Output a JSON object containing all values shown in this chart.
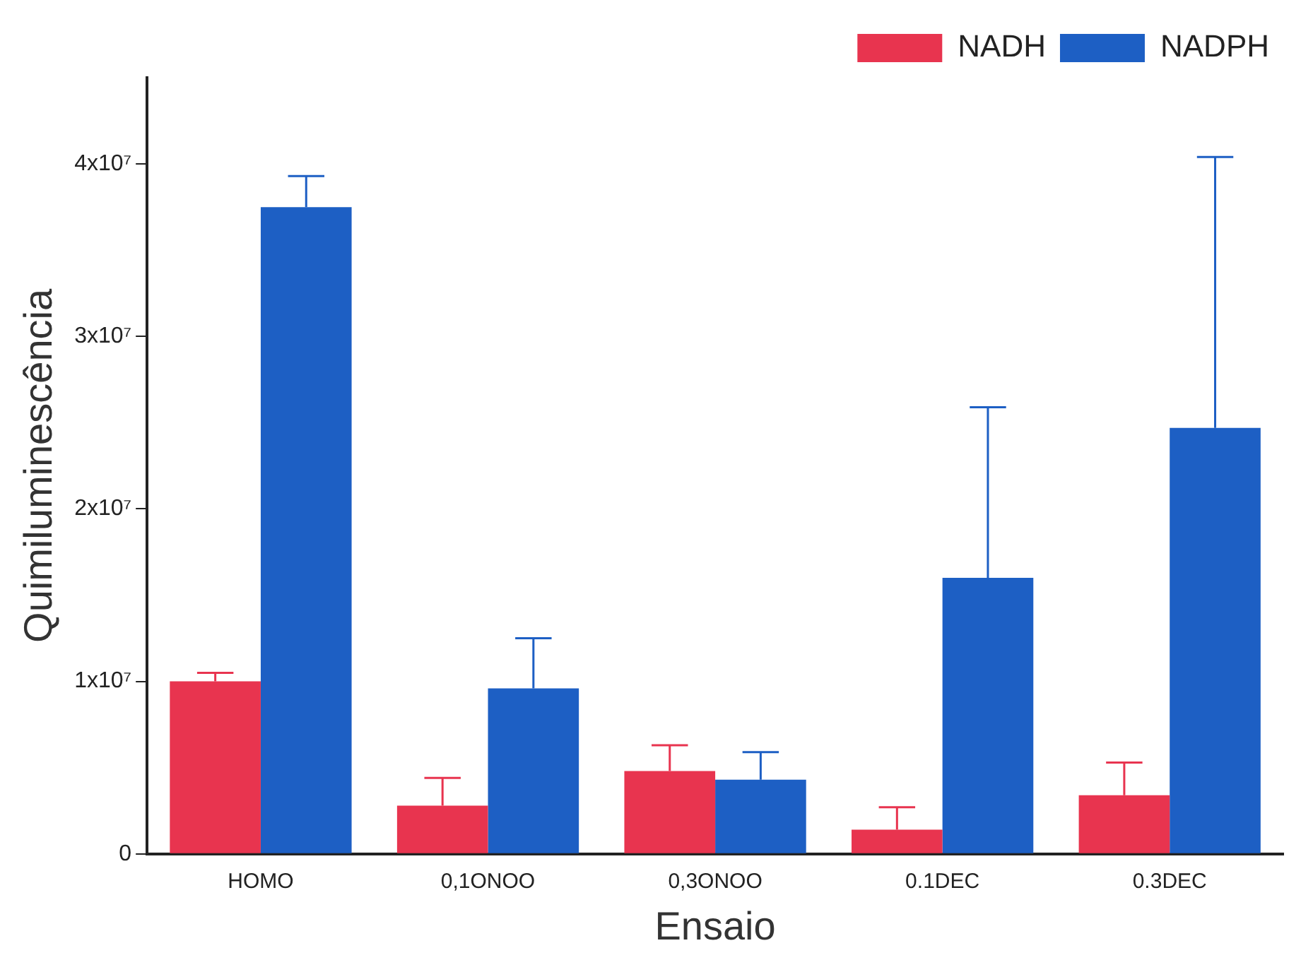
{
  "chart_data": {
    "type": "bar",
    "xlabel": "Ensaio",
    "ylabel": "Quimiluminescência",
    "categories": [
      "HOMO",
      "0,1ONOO",
      "0,3ONOO",
      "0.1DEC",
      "0.3DEC"
    ],
    "series": [
      {
        "name": "NADH",
        "color": "#e8344f",
        "values": [
          10000000,
          2800000,
          4800000,
          1400000,
          3400000
        ],
        "errors": [
          [
            10000000,
            10500000
          ],
          [
            2800000,
            4400000
          ],
          [
            4800000,
            6300000
          ],
          [
            1400000,
            2700000
          ],
          [
            3400000,
            5300000
          ]
        ]
      },
      {
        "name": "NADPH",
        "color": "#1d5fc4",
        "values": [
          37500000,
          9600000,
          4300000,
          16000000,
          24700000
        ],
        "errors": [
          [
            37500000,
            39300000
          ],
          [
            9600000,
            12500000
          ],
          [
            4300000,
            5900000
          ],
          [
            16000000,
            25900000
          ],
          [
            24700000,
            40400000
          ]
        ]
      }
    ],
    "ylim": [
      0,
      45000000
    ],
    "yticks": [
      0,
      {
        "value": 10000000,
        "label": "1x10⁷"
      },
      {
        "value": 20000000,
        "label": "2x10⁷"
      },
      {
        "value": 30000000,
        "label": "3x10⁷"
      },
      {
        "value": 40000000,
        "label": "4x10⁷"
      }
    ],
    "grid": false,
    "legend": "top right"
  }
}
